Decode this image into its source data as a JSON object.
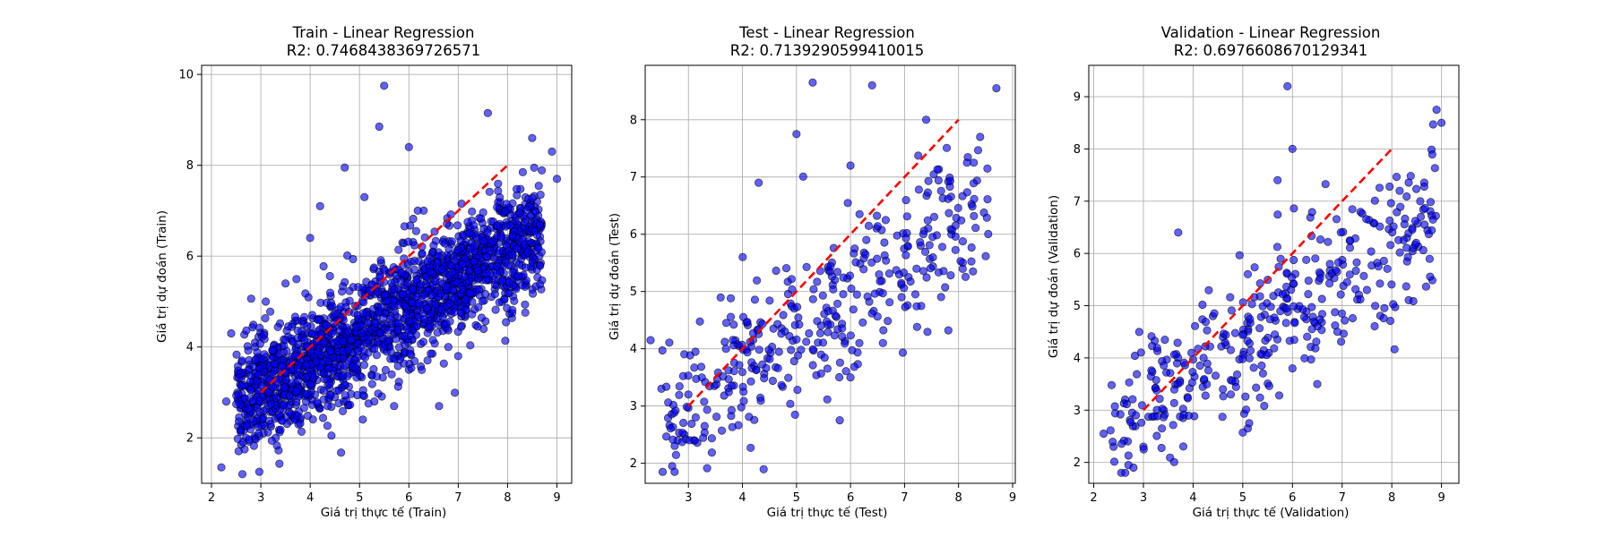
{
  "chart_data": [
    {
      "type": "scatter",
      "title": "Train - Linear Regression",
      "subtitle": "R2: 0.7468438369726571",
      "xlabel": "Giá trị thực tế (Train)",
      "ylabel": "Giá trị dự đoán (Train)",
      "xlim": [
        1.8,
        9.3
      ],
      "ylim": [
        1.0,
        10.2
      ],
      "xticks": [
        2,
        3,
        4,
        5,
        6,
        7,
        8,
        9
      ],
      "yticks": [
        2,
        4,
        6,
        8,
        10
      ],
      "grid": true,
      "point_color": "#0000ff",
      "point_edge": "#000000",
      "line_color": "#ff0000",
      "reference_line": {
        "x": [
          3,
          8
        ],
        "y": [
          3,
          8
        ]
      },
      "point_count": 2000,
      "points": [
        [
          2.2,
          1.35
        ],
        [
          2.3,
          2.8
        ],
        [
          2.4,
          4.3
        ],
        [
          2.6,
          1.85
        ],
        [
          2.7,
          2.0
        ],
        [
          3.0,
          3.7
        ],
        [
          3.3,
          2.0
        ],
        [
          3.5,
          5.4
        ],
        [
          3.8,
          2.4
        ],
        [
          4.2,
          7.1
        ],
        [
          4.7,
          7.95
        ],
        [
          5.1,
          7.3
        ],
        [
          5.5,
          9.75
        ],
        [
          5.4,
          8.85
        ],
        [
          5.7,
          2.7
        ],
        [
          5.3,
          2.8
        ],
        [
          6.0,
          3.5
        ],
        [
          6.3,
          7.0
        ],
        [
          6.8,
          4.0
        ],
        [
          7.0,
          3.8
        ],
        [
          7.6,
          9.15
        ],
        [
          8.5,
          8.6
        ],
        [
          8.9,
          8.3
        ],
        [
          9.0,
          7.7
        ],
        [
          4.5,
          2.9
        ],
        [
          3.1,
          5.0
        ],
        [
          4.0,
          6.4
        ],
        [
          6.0,
          8.4
        ]
      ]
    },
    {
      "type": "scatter",
      "title": "Test - Linear Regression",
      "subtitle": "R2: 0.7139290599410015",
      "xlabel": "Giá trị thực tế (Test)",
      "ylabel": "Giá trị dự đoán (Test)",
      "xlim": [
        2.2,
        9.05
      ],
      "ylim": [
        1.65,
        8.95
      ],
      "xticks": [
        3,
        4,
        5,
        6,
        7,
        8,
        9
      ],
      "yticks": [
        2,
        3,
        4,
        5,
        6,
        7,
        8
      ],
      "grid": true,
      "point_color": "#0000ff",
      "point_edge": "#000000",
      "line_color": "#ff0000",
      "reference_line": {
        "x": [
          3,
          8
        ],
        "y": [
          3,
          8
        ]
      },
      "point_count": 400,
      "points": [
        [
          2.3,
          4.15
        ],
        [
          2.5,
          3.3
        ],
        [
          2.7,
          1.95
        ],
        [
          2.8,
          2.4
        ],
        [
          3.1,
          2.4
        ],
        [
          4.3,
          6.9
        ],
        [
          5.0,
          7.75
        ],
        [
          5.3,
          8.65
        ],
        [
          6.4,
          8.6
        ],
        [
          5.8,
          2.75
        ],
        [
          6.0,
          3.5
        ],
        [
          6.6,
          4.1
        ],
        [
          7.2,
          4.95
        ],
        [
          8.7,
          8.55
        ],
        [
          8.4,
          7.7
        ],
        [
          3.3,
          2.65
        ],
        [
          6.0,
          7.2
        ],
        [
          7.4,
          8.0
        ]
      ]
    },
    {
      "type": "scatter",
      "title": "Validation - Linear Regression",
      "subtitle": "R2: 0.6976608670129341",
      "xlabel": "Giá trị thực tế (Validation)",
      "ylabel": "Giá trị dự đoán (Validation)",
      "xlim": [
        1.9,
        9.35
      ],
      "ylim": [
        1.6,
        9.6
      ],
      "xticks": [
        2,
        3,
        4,
        5,
        6,
        7,
        8,
        9
      ],
      "yticks": [
        2,
        3,
        4,
        5,
        6,
        7,
        8,
        9
      ],
      "grid": true,
      "point_color": "#0000ff",
      "point_edge": "#000000",
      "line_color": "#ff0000",
      "reference_line": {
        "x": [
          3,
          8
        ],
        "y": [
          3,
          8
        ]
      },
      "point_count": 400,
      "points": [
        [
          2.2,
          2.55
        ],
        [
          2.4,
          2.3
        ],
        [
          2.7,
          1.95
        ],
        [
          2.8,
          1.9
        ],
        [
          3.0,
          2.3
        ],
        [
          3.8,
          2.85
        ],
        [
          5.1,
          2.65
        ],
        [
          5.9,
          9.2
        ],
        [
          6.0,
          8.0
        ],
        [
          9.0,
          8.5
        ],
        [
          8.9,
          8.75
        ],
        [
          6.5,
          3.5
        ],
        [
          4.6,
          3.4
        ],
        [
          3.7,
          6.4
        ],
        [
          5.7,
          7.4
        ],
        [
          7.5,
          5.3
        ],
        [
          6.0,
          3.8
        ]
      ]
    }
  ]
}
